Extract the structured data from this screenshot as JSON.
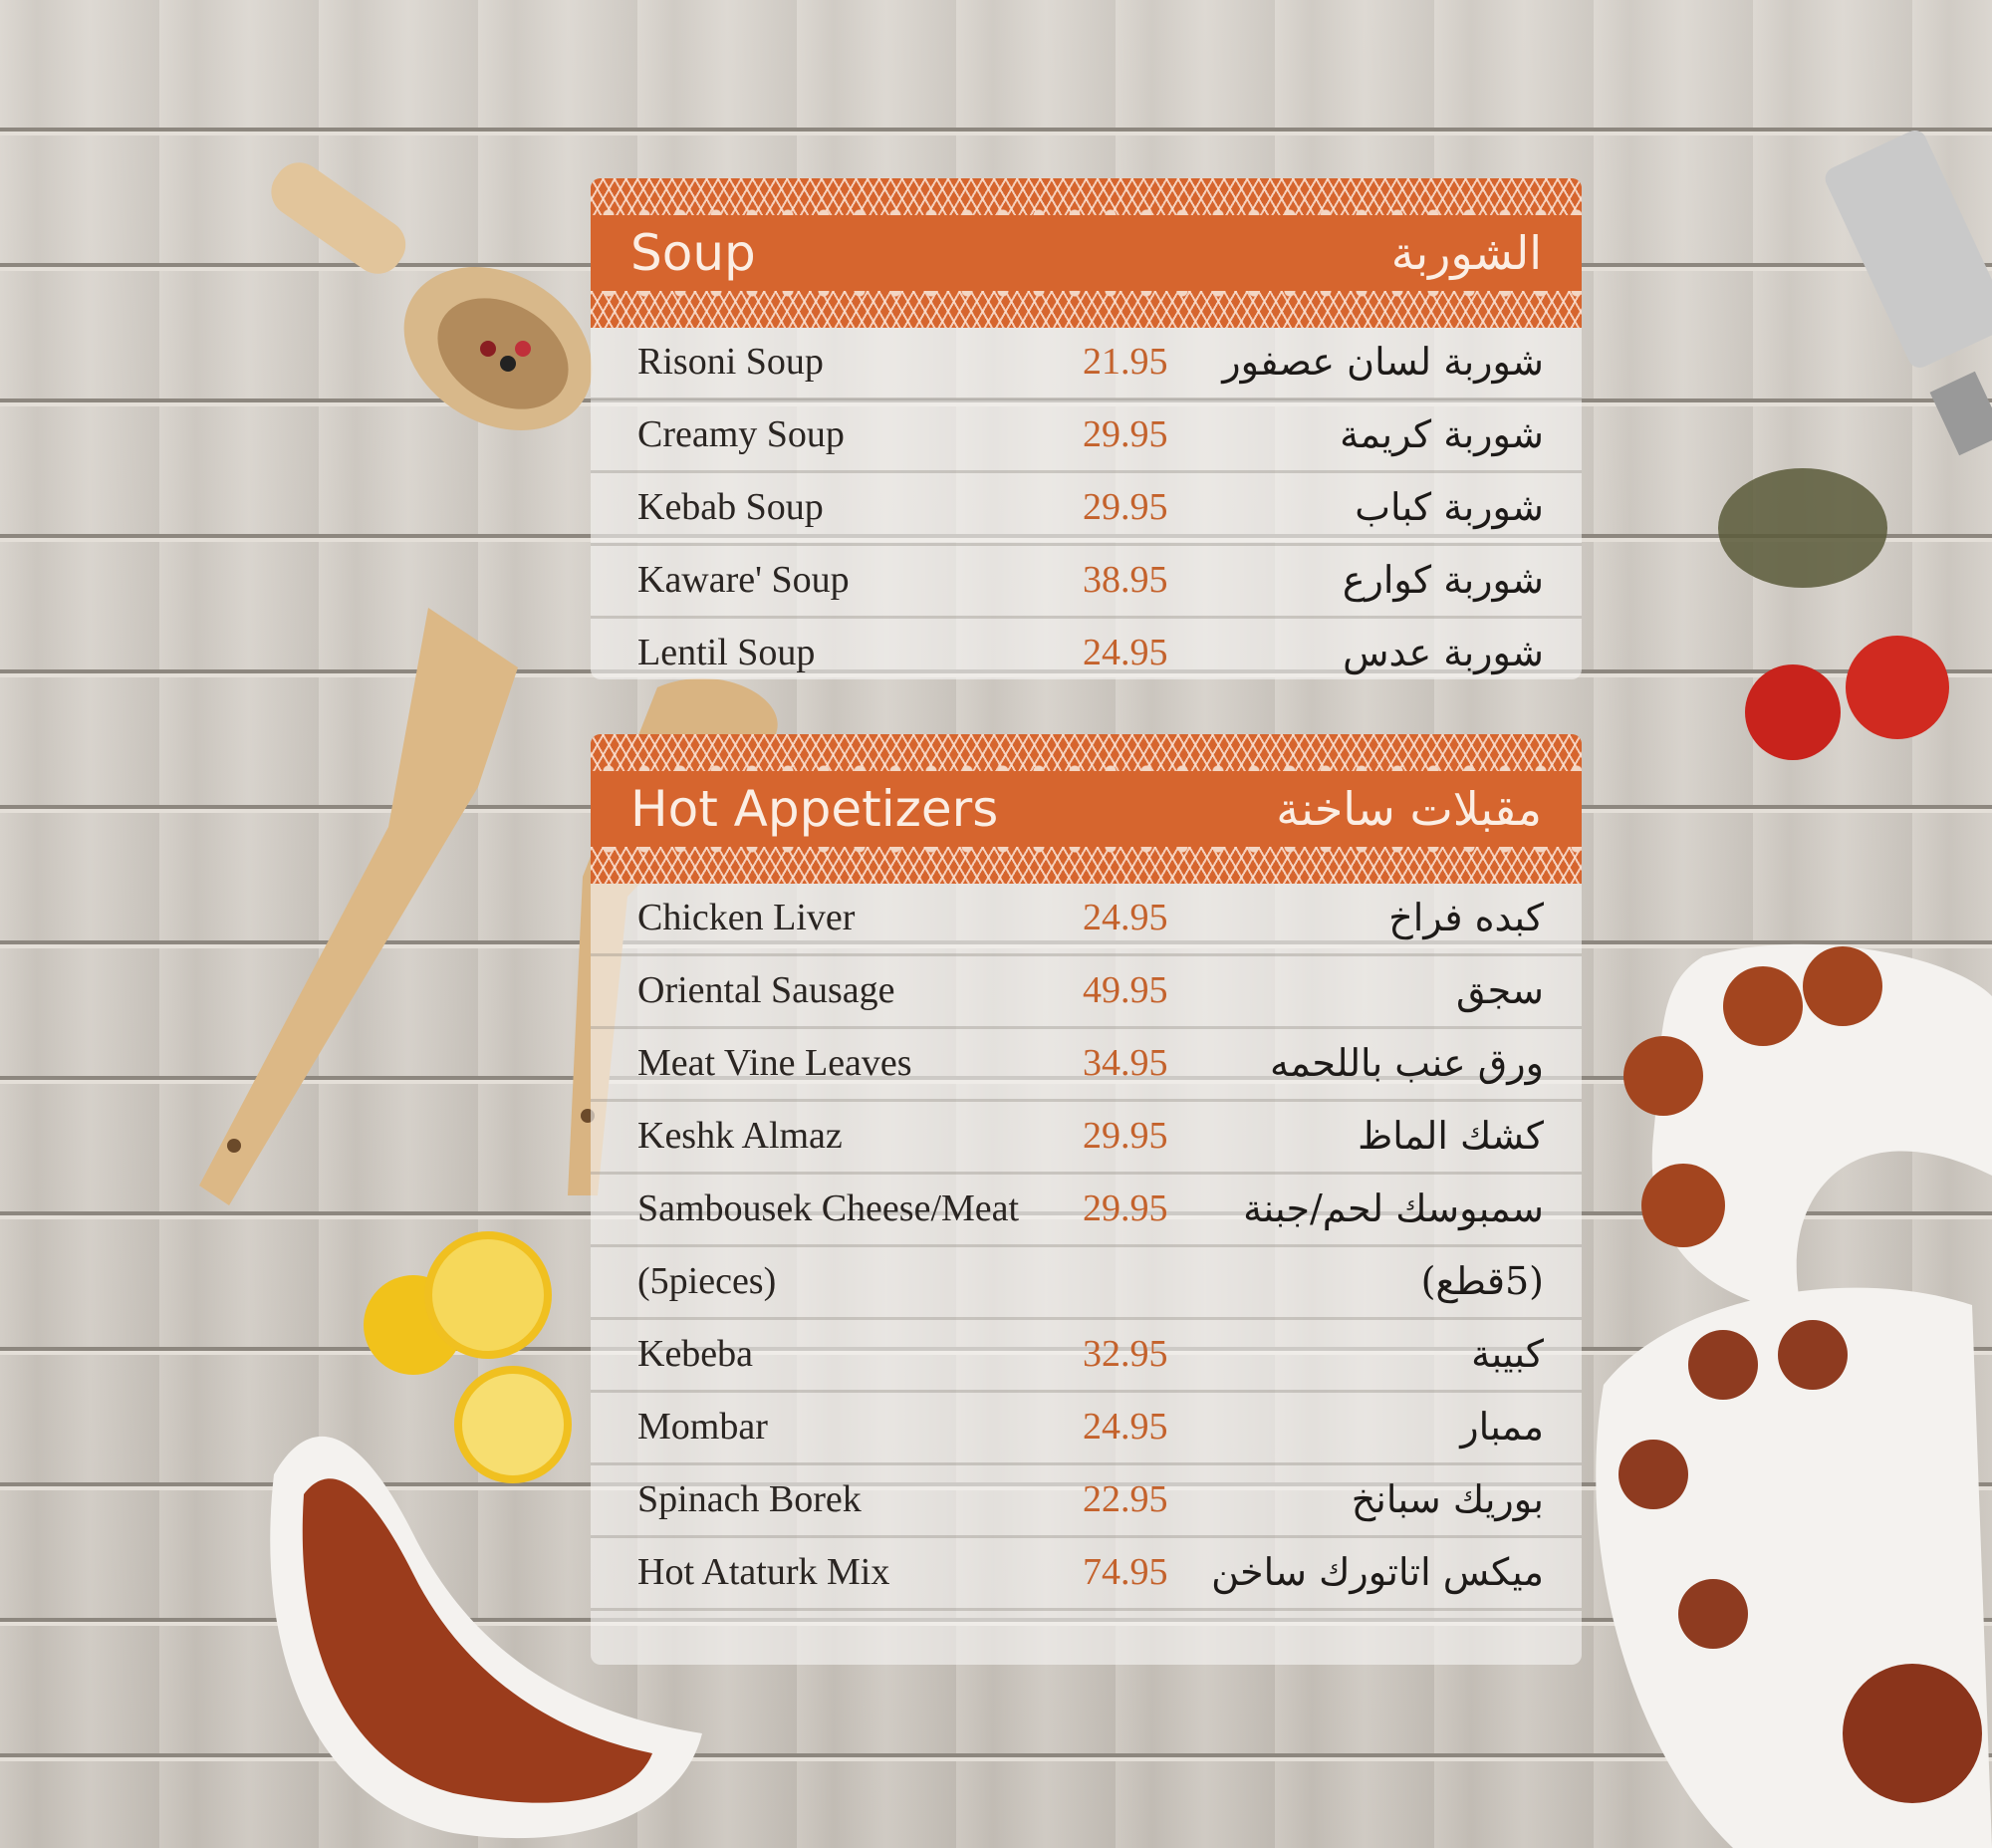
{
  "colors": {
    "accent": "#d6652e",
    "price": "#c4622c",
    "text": "#2a2522"
  },
  "sections": [
    {
      "title_en": "Soup",
      "title_ar": "الشوربة",
      "items": [
        {
          "name": "Risoni Soup",
          "price": "21.95",
          "name_ar": "شوربة لسان عصفور"
        },
        {
          "name": "Creamy Soup",
          "price": "29.95",
          "name_ar": "شوربة كريمة"
        },
        {
          "name": "Kebab Soup",
          "price": "29.95",
          "name_ar": "شوربة كباب"
        },
        {
          "name": "Kaware' Soup",
          "price": "38.95",
          "name_ar": "شوربة كوارع"
        },
        {
          "name": "Lentil Soup",
          "price": "24.95",
          "name_ar": "شوربة عدس"
        }
      ]
    },
    {
      "title_en": "Hot Appetizers",
      "title_ar": "مقبلات ساخنة",
      "items": [
        {
          "name": "Chicken Liver",
          "price": "24.95",
          "name_ar": "كبده فراخ"
        },
        {
          "name": "Oriental Sausage",
          "price": "49.95",
          "name_ar": "سجق"
        },
        {
          "name": "Meat Vine Leaves",
          "price": "34.95",
          "name_ar": "ورق عنب باللحمه"
        },
        {
          "name": "Keshk Almaz",
          "price": "29.95",
          "name_ar": "كشك الماظ"
        },
        {
          "name": "Sambousek Cheese/Meat",
          "price": "29.95",
          "name_ar": "سمبوسك لحم/جبنة"
        },
        {
          "name": "(5pieces)",
          "price": "",
          "name_ar": "(5قطع)"
        },
        {
          "name": "Kebeba",
          "price": "32.95",
          "name_ar": "كبيبة"
        },
        {
          "name": "Mombar",
          "price": "24.95",
          "name_ar": "ممبار"
        },
        {
          "name": "Spinach Borek",
          "price": "22.95",
          "name_ar": "بوريك سبانخ"
        },
        {
          "name": "Hot Ataturk Mix",
          "price": "74.95",
          "name_ar": "ميكس اتاتورك ساخن"
        }
      ]
    }
  ]
}
